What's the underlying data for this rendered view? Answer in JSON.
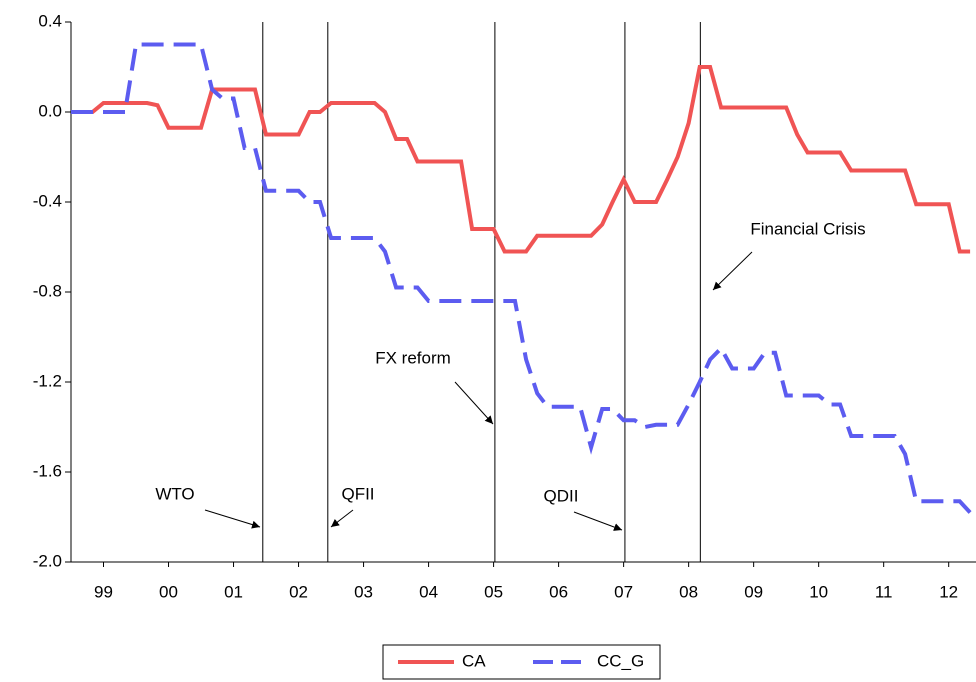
{
  "chart_data": {
    "type": "line",
    "x": [
      1999,
      1999.17,
      1999.33,
      1999.5,
      1999.67,
      1999.83,
      2000,
      2000.17,
      2000.33,
      2000.5,
      2000.67,
      2000.83,
      2001,
      2001.17,
      2001.33,
      2001.5,
      2001.67,
      2001.83,
      2002,
      2002.17,
      2002.33,
      2002.5,
      2002.67,
      2002.83,
      2003,
      2003.17,
      2003.33,
      2003.5,
      2003.67,
      2003.83,
      2004,
      2004.17,
      2004.33,
      2004.5,
      2004.67,
      2004.83,
      2005,
      2005.17,
      2005.33,
      2005.5,
      2005.67,
      2005.83,
      2006,
      2006.17,
      2006.33,
      2006.5,
      2006.67,
      2006.83,
      2007,
      2007.17,
      2007.33,
      2007.5,
      2007.67,
      2007.83,
      2008,
      2008.17,
      2008.33,
      2008.5,
      2008.67,
      2008.83,
      2009,
      2009.17,
      2009.33,
      2009.5,
      2009.67,
      2009.83,
      2010,
      2010.17,
      2010.33,
      2010.5,
      2010.67,
      2010.83,
      2011,
      2011.17,
      2011.33,
      2011.5,
      2011.67,
      2011.83,
      2012,
      2012.17,
      2012.33,
      2012.5,
      2012.67,
      2012.83
    ],
    "series": [
      {
        "name": "CA",
        "color": "#f05454",
        "dashed": false,
        "values": [
          0,
          0,
          0,
          0.04,
          0.04,
          0.04,
          0.04,
          0.04,
          0.03,
          -0.07,
          -0.07,
          -0.07,
          -0.07,
          0.1,
          0.1,
          0.1,
          0.1,
          0.1,
          -0.1,
          -0.1,
          -0.1,
          -0.1,
          0,
          0,
          0.04,
          0.04,
          0.04,
          0.04,
          0.04,
          0,
          -0.12,
          -0.12,
          -0.22,
          -0.22,
          -0.22,
          -0.22,
          -0.22,
          -0.52,
          -0.52,
          -0.52,
          -0.62,
          -0.62,
          -0.62,
          -0.55,
          -0.55,
          -0.55,
          -0.55,
          -0.55,
          -0.55,
          -0.5,
          -0.4,
          -0.3,
          -0.4,
          -0.4,
          -0.4,
          -0.3,
          -0.2,
          -0.05,
          0.2,
          0.2,
          0.02,
          0.02,
          0.02,
          0.02,
          0.02,
          0.02,
          0.02,
          -0.1,
          -0.18,
          -0.18,
          -0.18,
          -0.18,
          -0.26,
          -0.26,
          -0.26,
          -0.26,
          -0.26,
          -0.26,
          -0.41,
          -0.41,
          -0.41,
          -0.41,
          -0.62,
          -0.62
        ]
      },
      {
        "name": "CC_G",
        "color": "#5c5cf0",
        "dashed": true,
        "values": [
          0,
          0,
          0,
          0,
          0,
          0,
          0.3,
          0.3,
          0.3,
          0.3,
          0.3,
          0.3,
          0.3,
          0.1,
          0.06,
          0.06,
          -0.16,
          -0.16,
          -0.35,
          -0.35,
          -0.35,
          -0.35,
          -0.4,
          -0.4,
          -0.56,
          -0.56,
          -0.56,
          -0.56,
          -0.56,
          -0.62,
          -0.78,
          -0.78,
          -0.78,
          -0.84,
          -0.84,
          -0.84,
          -0.84,
          -0.84,
          -0.84,
          -0.84,
          -0.84,
          -0.84,
          -1.1,
          -1.25,
          -1.31,
          -1.31,
          -1.31,
          -1.31,
          -1.49,
          -1.32,
          -1.32,
          -1.37,
          -1.37,
          -1.4,
          -1.39,
          -1.39,
          -1.39,
          -1.3,
          -1.2,
          -1.1,
          -1.05,
          -1.14,
          -1.14,
          -1.14,
          -1.07,
          -1.07,
          -1.26,
          -1.26,
          -1.26,
          -1.26,
          -1.3,
          -1.3,
          -1.44,
          -1.44,
          -1.44,
          -1.44,
          -1.44,
          -1.52,
          -1.73,
          -1.73,
          -1.73,
          -1.73,
          -1.73,
          -1.78
        ]
      }
    ],
    "xlim": [
      1999,
      2012.92
    ],
    "xticks": [
      {
        "value": 1999.5,
        "label": "99"
      },
      {
        "value": 2000.5,
        "label": "00"
      },
      {
        "value": 2001.5,
        "label": "01"
      },
      {
        "value": 2002.5,
        "label": "02"
      },
      {
        "value": 2003.5,
        "label": "03"
      },
      {
        "value": 2004.5,
        "label": "04"
      },
      {
        "value": 2005.5,
        "label": "05"
      },
      {
        "value": 2006.5,
        "label": "06"
      },
      {
        "value": 2007.5,
        "label": "07"
      },
      {
        "value": 2008.5,
        "label": "08"
      },
      {
        "value": 2009.5,
        "label": "09"
      },
      {
        "value": 2010.5,
        "label": "10"
      },
      {
        "value": 2011.5,
        "label": "11"
      },
      {
        "value": 2012.5,
        "label": "12"
      }
    ],
    "ylim": [
      -2,
      0.4
    ],
    "yticks": [
      0.4,
      {
        "value": 0,
        "label": "0.0"
      },
      -0.4,
      -0.8,
      -1.2,
      -1.6,
      {
        "value": -2,
        "label": "-2.0"
      }
    ],
    "event_lines": [
      2001.95,
      2002.95,
      2005.52,
      2007.52,
      2008.68
    ],
    "annotations": [
      "WTO",
      "QFII",
      "FX reform",
      "QDII",
      "Financial Crisis"
    ],
    "legend": "bottom"
  }
}
